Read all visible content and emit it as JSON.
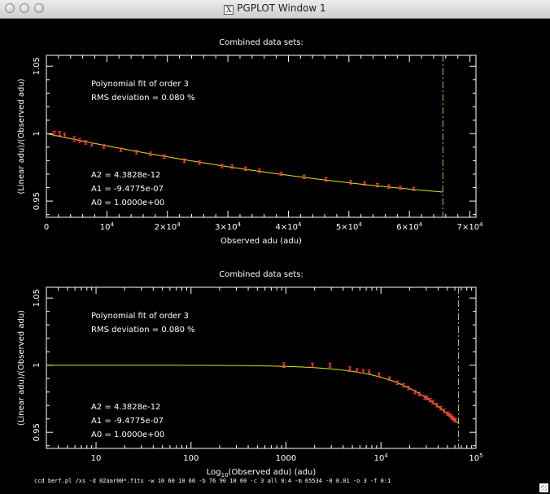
{
  "window": {
    "title": "PGPLOT Window 1"
  },
  "command_line": "ccd berf.pl /xs -d 02aar00*.fits -w 10 60 10 60 -b 76 90 10 60 -c 3 all 0:4 -m 65534 -0 0.01 -o 3 -f 0:1",
  "colors": {
    "background": "#000000",
    "axes": "#ffffff",
    "fit": "#e8e020",
    "points": "#ff4040",
    "limit": "#b8c840"
  },
  "chart_data": [
    {
      "type": "scatter",
      "title": "Combined data sets:",
      "xlabel": "Observed adu (adu)",
      "ylabel": "(Linear adu)/(Observed adu)",
      "xscale": "linear",
      "xlim": [
        0,
        71000
      ],
      "ylim": [
        0.938,
        1.058
      ],
      "x_ticks": [
        {
          "value": 0,
          "label": "0",
          "exp": ""
        },
        {
          "value": 10000,
          "label": "10",
          "exp": "4"
        },
        {
          "value": 20000,
          "label": "2×10",
          "exp": "4"
        },
        {
          "value": 30000,
          "label": "3×10",
          "exp": "4"
        },
        {
          "value": 40000,
          "label": "4×10",
          "exp": "4"
        },
        {
          "value": 50000,
          "label": "5×10",
          "exp": "4"
        },
        {
          "value": 60000,
          "label": "6×10",
          "exp": "4"
        },
        {
          "value": 70000,
          "label": "7×10",
          "exp": "4"
        }
      ],
      "y_ticks": [
        {
          "value": 0.95,
          "label": "0.95"
        },
        {
          "value": 1.0,
          "label": "1"
        },
        {
          "value": 1.05,
          "label": "1.05"
        }
      ],
      "annotations": [
        "Polynomial fit of order  3",
        "RMS deviation =    0.080 %"
      ],
      "coefficients": [
        "A2 = 4.3828e-12",
        "A1 = -9.4775e-07",
        "A0 = 1.0000e+00"
      ],
      "fit": {
        "a0": 1.0,
        "a1": -9.4775e-07,
        "a2": 4.3828e-12,
        "x_range": [
          0,
          65534
        ]
      },
      "limit_x": 65534,
      "points": [
        {
          "x": 1300,
          "y": 1.0,
          "err": 0.0017
        },
        {
          "x": 2200,
          "y": 1.0,
          "err": 0.0015
        },
        {
          "x": 3000,
          "y": 0.999,
          "err": 0.0015
        },
        {
          "x": 4600,
          "y": 0.996,
          "err": 0.0017
        },
        {
          "x": 5500,
          "y": 0.995,
          "err": 0.0014
        },
        {
          "x": 6500,
          "y": 0.9935,
          "err": 0.0013
        },
        {
          "x": 7500,
          "y": 0.992,
          "err": 0.0013
        },
        {
          "x": 9500,
          "y": 0.9905,
          "err": 0.0013
        },
        {
          "x": 12300,
          "y": 0.988,
          "err": 0.0013
        },
        {
          "x": 14900,
          "y": 0.9863,
          "err": 0.0013
        },
        {
          "x": 17200,
          "y": 0.985,
          "err": 0.0013
        },
        {
          "x": 19500,
          "y": 0.983,
          "err": 0.0013
        },
        {
          "x": 22800,
          "y": 0.98,
          "err": 0.0013
        },
        {
          "x": 25300,
          "y": 0.9785,
          "err": 0.0013
        },
        {
          "x": 29000,
          "y": 0.976,
          "err": 0.0013
        },
        {
          "x": 30700,
          "y": 0.9755,
          "err": 0.0013
        },
        {
          "x": 32900,
          "y": 0.974,
          "err": 0.0013
        },
        {
          "x": 35200,
          "y": 0.9725,
          "err": 0.0013
        },
        {
          "x": 38800,
          "y": 0.9702,
          "err": 0.0013
        },
        {
          "x": 42600,
          "y": 0.968,
          "err": 0.0013
        },
        {
          "x": 46200,
          "y": 0.966,
          "err": 0.0013
        },
        {
          "x": 50300,
          "y": 0.964,
          "err": 0.0013
        },
        {
          "x": 52600,
          "y": 0.963,
          "err": 0.0013
        },
        {
          "x": 54700,
          "y": 0.9618,
          "err": 0.0013
        },
        {
          "x": 56600,
          "y": 0.9608,
          "err": 0.0013
        },
        {
          "x": 58500,
          "y": 0.9598,
          "err": 0.0013
        },
        {
          "x": 60700,
          "y": 0.959,
          "err": 0.0013
        }
      ]
    },
    {
      "type": "scatter",
      "title": "Combined data sets:",
      "xlabel": "(Observed adu) (adu)",
      "xlabel_prefix": "Log",
      "xlabel_sub": "10",
      "ylabel": "(Linear adu)/(Observed adu)",
      "xscale": "log",
      "xlim": [
        3,
        100000
      ],
      "ylim": [
        0.938,
        1.058
      ],
      "x_ticks": [
        {
          "value": 10,
          "label": "10",
          "exp": ""
        },
        {
          "value": 100,
          "label": "100",
          "exp": ""
        },
        {
          "value": 1000,
          "label": "1000",
          "exp": ""
        },
        {
          "value": 10000,
          "label": "10",
          "exp": "4"
        },
        {
          "value": 100000,
          "label": "10",
          "exp": "5"
        }
      ],
      "y_ticks": [
        {
          "value": 0.95,
          "label": "0.95"
        },
        {
          "value": 1.0,
          "label": "1"
        },
        {
          "value": 1.05,
          "label": "1.05"
        }
      ],
      "annotations": [
        "Polynomial fit of order  3",
        "RMS deviation =    0.080 %"
      ],
      "coefficients": [
        "A2 = 4.3828e-12",
        "A1 = -9.4775e-07",
        "A0 = 1.0000e+00"
      ],
      "fit": {
        "a0": 1.0,
        "a1": -9.4775e-07,
        "a2": 4.3828e-12,
        "x_range": [
          3,
          65534
        ]
      },
      "limit_x": 65534,
      "points": [
        {
          "x": 950,
          "y": 1.0,
          "err": 0.0017
        },
        {
          "x": 1900,
          "y": 1.0,
          "err": 0.0015
        },
        {
          "x": 2900,
          "y": 1.0,
          "err": 0.0015
        },
        {
          "x": 4700,
          "y": 0.997,
          "err": 0.0017
        },
        {
          "x": 5600,
          "y": 0.996,
          "err": 0.0014
        },
        {
          "x": 6500,
          "y": 0.9955,
          "err": 0.0013
        },
        {
          "x": 7500,
          "y": 0.995,
          "err": 0.0013
        },
        {
          "x": 9500,
          "y": 0.993,
          "err": 0.0013
        },
        {
          "x": 12300,
          "y": 0.99,
          "err": 0.0013
        },
        {
          "x": 14900,
          "y": 0.987,
          "err": 0.0013
        },
        {
          "x": 17200,
          "y": 0.985,
          "err": 0.0013
        },
        {
          "x": 19500,
          "y": 0.983,
          "err": 0.0013
        },
        {
          "x": 22800,
          "y": 0.98,
          "err": 0.0013
        },
        {
          "x": 25300,
          "y": 0.9785,
          "err": 0.0013
        },
        {
          "x": 29000,
          "y": 0.976,
          "err": 0.0013
        },
        {
          "x": 30700,
          "y": 0.9755,
          "err": 0.0013
        },
        {
          "x": 32900,
          "y": 0.974,
          "err": 0.0013
        },
        {
          "x": 35200,
          "y": 0.9725,
          "err": 0.0013
        },
        {
          "x": 38800,
          "y": 0.9702,
          "err": 0.0013
        },
        {
          "x": 42600,
          "y": 0.968,
          "err": 0.0013
        },
        {
          "x": 46200,
          "y": 0.966,
          "err": 0.0013
        },
        {
          "x": 50300,
          "y": 0.964,
          "err": 0.0013
        },
        {
          "x": 52600,
          "y": 0.963,
          "err": 0.0013
        },
        {
          "x": 54700,
          "y": 0.9618,
          "err": 0.0013
        },
        {
          "x": 56600,
          "y": 0.9608,
          "err": 0.0013
        },
        {
          "x": 58500,
          "y": 0.9598,
          "err": 0.0013
        },
        {
          "x": 60700,
          "y": 0.959,
          "err": 0.0013
        }
      ]
    }
  ]
}
